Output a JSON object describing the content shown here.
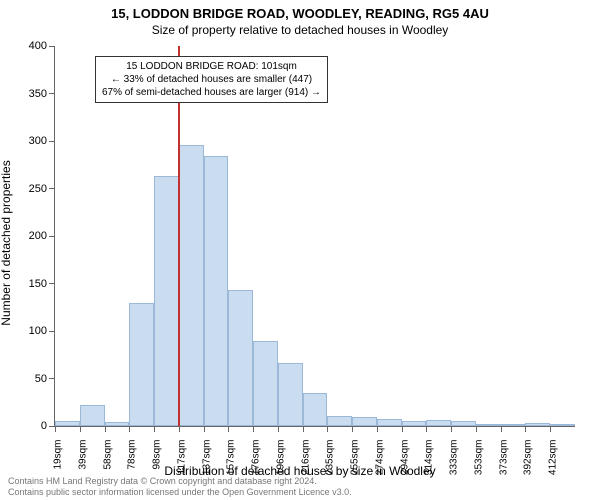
{
  "header": {
    "title": "15, LODDON BRIDGE ROAD, WOODLEY, READING, RG5 4AU",
    "subtitle": "Size of property relative to detached houses in Woodley"
  },
  "chart": {
    "type": "histogram",
    "ylabel": "Number of detached properties",
    "xlabel": "Distribution of detached houses by size in Woodley",
    "ylim": [
      0,
      400
    ],
    "ytick_step": 50,
    "xtick_labels": [
      "19sqm",
      "39sqm",
      "58sqm",
      "78sqm",
      "98sqm",
      "117sqm",
      "137sqm",
      "157sqm",
      "176sqm",
      "196sqm",
      "216sqm",
      "235sqm",
      "255sqm",
      "274sqm",
      "294sqm",
      "314sqm",
      "333sqm",
      "353sqm",
      "373sqm",
      "392sqm",
      "412sqm"
    ],
    "bars": [
      5,
      22,
      4,
      130,
      263,
      296,
      284,
      143,
      90,
      66,
      35,
      11,
      10,
      7,
      5,
      6,
      5,
      1,
      0,
      3,
      1
    ],
    "bar_fill": "#cadcf0",
    "bar_border": "#9cb8d8",
    "background_color": "#ffffff",
    "axis_color": "#666666",
    "tick_fontsize": 10,
    "label_fontsize": 12,
    "bar_gap_ratio": 0.0,
    "marker": {
      "position_index": 5,
      "line_color": "#c23030",
      "line_width": 2,
      "box_lines": [
        "15 LODDON BRIDGE ROAD: 101sqm",
        "← 33% of detached houses are smaller (447)",
        "67% of semi-detached houses are larger (914) →"
      ],
      "box_border": "#333333",
      "box_bg": "#ffffff",
      "box_fontsize": 10
    }
  },
  "footer": {
    "line1": "Contains HM Land Registry data © Crown copyright and database right 2024.",
    "line2": "Contains public sector information licensed under the Open Government Licence v3.0."
  }
}
